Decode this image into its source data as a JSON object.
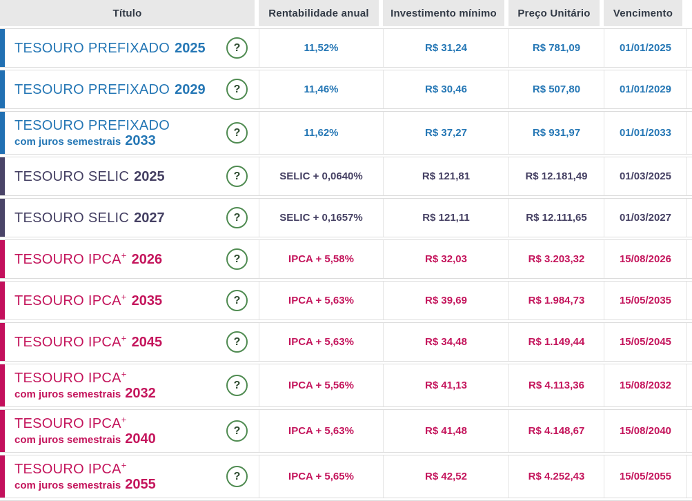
{
  "colors": {
    "prefixado_blue": "#2577b5",
    "selic_purple": "#454063",
    "ipca_pink": "#c4155c",
    "help_green": "#4f8b51",
    "header_background": "#e8e8e8"
  },
  "table": {
    "help_icon": "?",
    "columns": [
      {
        "label": "Título"
      },
      {
        "label": "Rentabilidade anual"
      },
      {
        "label": "Investimento mínimo"
      },
      {
        "label": "Preço Unitário"
      },
      {
        "label": "Vencimento"
      }
    ],
    "rows": [
      {
        "theme": "blue",
        "name": "TESOURO PREFIXADO",
        "name_suffix": "",
        "sub": "",
        "year": "2025",
        "rentabilidade": "11,52%",
        "investimento_minimo": "R$ 31,24",
        "preco_unitario": "R$ 781,09",
        "vencimento": "01/01/2025"
      },
      {
        "theme": "blue",
        "name": "TESOURO PREFIXADO",
        "name_suffix": "",
        "sub": "",
        "year": "2029",
        "rentabilidade": "11,46%",
        "investimento_minimo": "R$ 30,46",
        "preco_unitario": "R$ 507,80",
        "vencimento": "01/01/2029"
      },
      {
        "theme": "blue",
        "name": "TESOURO PREFIXADO",
        "name_suffix": "",
        "sub": "com juros semestrais",
        "year": "2033",
        "rentabilidade": "11,62%",
        "investimento_minimo": "R$ 37,27",
        "preco_unitario": "R$ 931,97",
        "vencimento": "01/01/2033"
      },
      {
        "theme": "purple",
        "name": "TESOURO SELIC",
        "name_suffix": "",
        "sub": "",
        "year": "2025",
        "rentabilidade": "SELIC + 0,0640%",
        "investimento_minimo": "R$ 121,81",
        "preco_unitario": "R$ 12.181,49",
        "vencimento": "01/03/2025"
      },
      {
        "theme": "purple",
        "name": "TESOURO SELIC",
        "name_suffix": "",
        "sub": "",
        "year": "2027",
        "rentabilidade": "SELIC + 0,1657%",
        "investimento_minimo": "R$ 121,11",
        "preco_unitario": "R$ 12.111,65",
        "vencimento": "01/03/2027"
      },
      {
        "theme": "pink",
        "name": "TESOURO IPCA",
        "name_suffix": "+",
        "sub": "",
        "year": "2026",
        "rentabilidade": "IPCA + 5,58%",
        "investimento_minimo": "R$ 32,03",
        "preco_unitario": "R$ 3.203,32",
        "vencimento": "15/08/2026"
      },
      {
        "theme": "pink",
        "name": "TESOURO IPCA",
        "name_suffix": "+",
        "sub": "",
        "year": "2035",
        "rentabilidade": "IPCA + 5,63%",
        "investimento_minimo": "R$ 39,69",
        "preco_unitario": "R$ 1.984,73",
        "vencimento": "15/05/2035"
      },
      {
        "theme": "pink",
        "name": "TESOURO IPCA",
        "name_suffix": "+",
        "sub": "",
        "year": "2045",
        "rentabilidade": "IPCA + 5,63%",
        "investimento_minimo": "R$ 34,48",
        "preco_unitario": "R$ 1.149,44",
        "vencimento": "15/05/2045"
      },
      {
        "theme": "pink",
        "name": "TESOURO IPCA",
        "name_suffix": "+",
        "sub": "com juros semestrais",
        "year": "2032",
        "rentabilidade": "IPCA + 5,56%",
        "investimento_minimo": "R$ 41,13",
        "preco_unitario": "R$ 4.113,36",
        "vencimento": "15/08/2032"
      },
      {
        "theme": "pink",
        "name": "TESOURO IPCA",
        "name_suffix": "+",
        "sub": "com juros semestrais",
        "year": "2040",
        "rentabilidade": "IPCA + 5,63%",
        "investimento_minimo": "R$ 41,48",
        "preco_unitario": "R$ 4.148,67",
        "vencimento": "15/08/2040"
      },
      {
        "theme": "pink",
        "name": "TESOURO IPCA",
        "name_suffix": "+",
        "sub": "com juros semestrais",
        "year": "2055",
        "rentabilidade": "IPCA + 5,65%",
        "investimento_minimo": "R$ 42,52",
        "preco_unitario": "R$ 4.252,43",
        "vencimento": "15/05/2055"
      }
    ]
  }
}
